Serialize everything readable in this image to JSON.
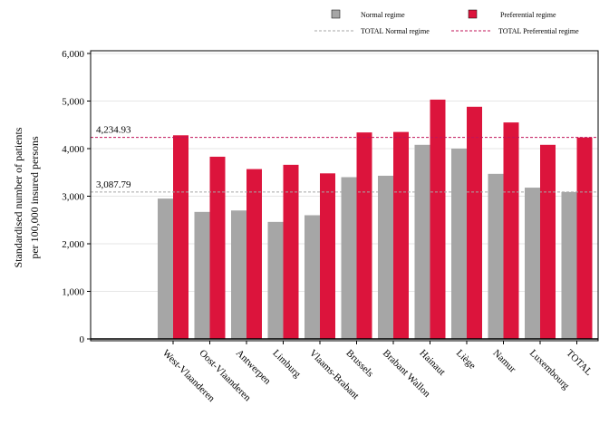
{
  "chart_data": {
    "type": "bar",
    "title": "",
    "xlabel": "",
    "ylabel_lines": [
      "Standardised number of patients",
      "per 100,000 insured persons"
    ],
    "ylim": [
      0,
      6000
    ],
    "yticks": [
      0,
      1000,
      2000,
      3000,
      4000,
      5000,
      6000
    ],
    "ytick_labels": [
      "0",
      "1,000",
      "2,000",
      "3,000",
      "4,000",
      "5,000",
      "6,000"
    ],
    "grid": true,
    "legend_position": "top",
    "categories": [
      "West-Vlaanderen",
      "Oost-Vlaanderen",
      "Antwerpen",
      "Limburg",
      "Vlaams-Brabant",
      "Brussels",
      "Brabant Wallon",
      "Hainaut",
      "Liège",
      "Namur",
      "Luxembourg",
      "TOTAL"
    ],
    "series": [
      {
        "name": "Normal regime",
        "color": "#a6a6a6",
        "values": [
          2950,
          2670,
          2700,
          2460,
          2600,
          3400,
          3430,
          4080,
          4000,
          3470,
          3180,
          3088
        ]
      },
      {
        "name": "Preferential regime",
        "color": "#dc143c",
        "values": [
          4280,
          3830,
          3570,
          3660,
          3480,
          4340,
          4350,
          5030,
          4880,
          4550,
          4080,
          4235
        ]
      }
    ],
    "reference_lines": [
      {
        "name": "TOTAL Normal regime",
        "value": 3087.79,
        "label": "3,087.79",
        "color": "#a6a6a6"
      },
      {
        "name": "TOTAL Preferential regime",
        "value": 4234.93,
        "label": "4,234.93",
        "color": "#c0145a"
      }
    ]
  }
}
